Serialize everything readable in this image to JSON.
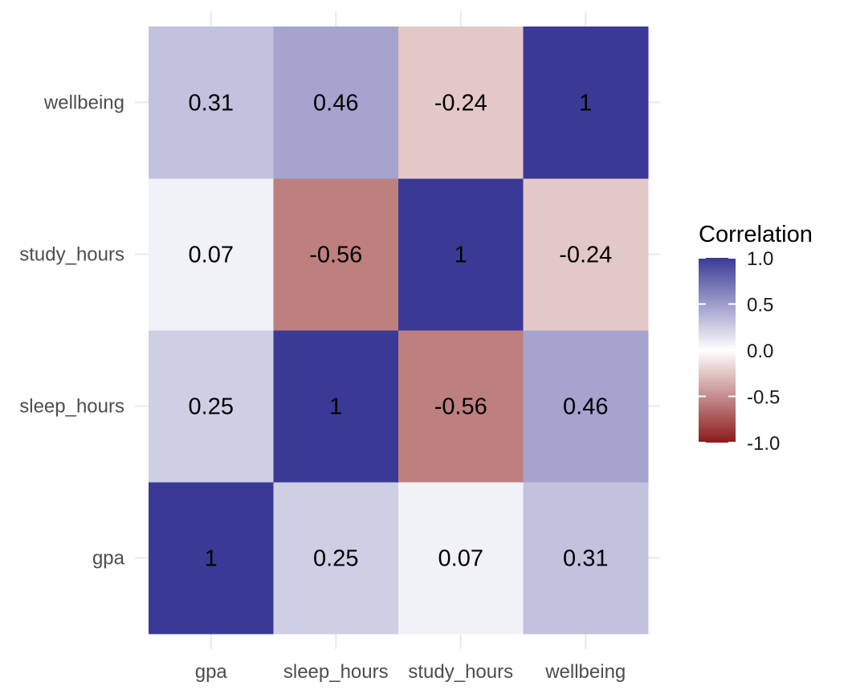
{
  "chart_data": {
    "type": "heatmap",
    "title": "",
    "xlabel": "",
    "ylabel": "",
    "x_categories": [
      "gpa",
      "sleep_hours",
      "study_hours",
      "wellbeing"
    ],
    "y_categories": [
      "gpa",
      "sleep_hours",
      "study_hours",
      "wellbeing"
    ],
    "values": [
      [
        1,
        0.25,
        0.07,
        0.31
      ],
      [
        0.25,
        1,
        -0.56,
        0.46
      ],
      [
        0.07,
        -0.56,
        1,
        -0.24
      ],
      [
        0.31,
        0.46,
        -0.24,
        1
      ]
    ],
    "value_labels": [
      [
        "1",
        "0.25",
        "0.07",
        "0.31"
      ],
      [
        "0.25",
        "1",
        "-0.56",
        "0.46"
      ],
      [
        "0.07",
        "-0.56",
        "1",
        "-0.24"
      ],
      [
        "0.31",
        "0.46",
        "-0.24",
        "1"
      ]
    ],
    "grid": true,
    "legend": {
      "title": "Correlation",
      "placement": "right",
      "range": [
        -1,
        1
      ],
      "ticks": [
        1.0,
        0.5,
        0.0,
        -0.5,
        -1.0
      ],
      "tick_labels": [
        "1.0",
        "0.5",
        "0.0",
        "-0.5",
        "-1.0"
      ],
      "colors": {
        "low": "#8b1a1a",
        "mid": "#ffffff",
        "high": "#3a3a96"
      }
    }
  }
}
